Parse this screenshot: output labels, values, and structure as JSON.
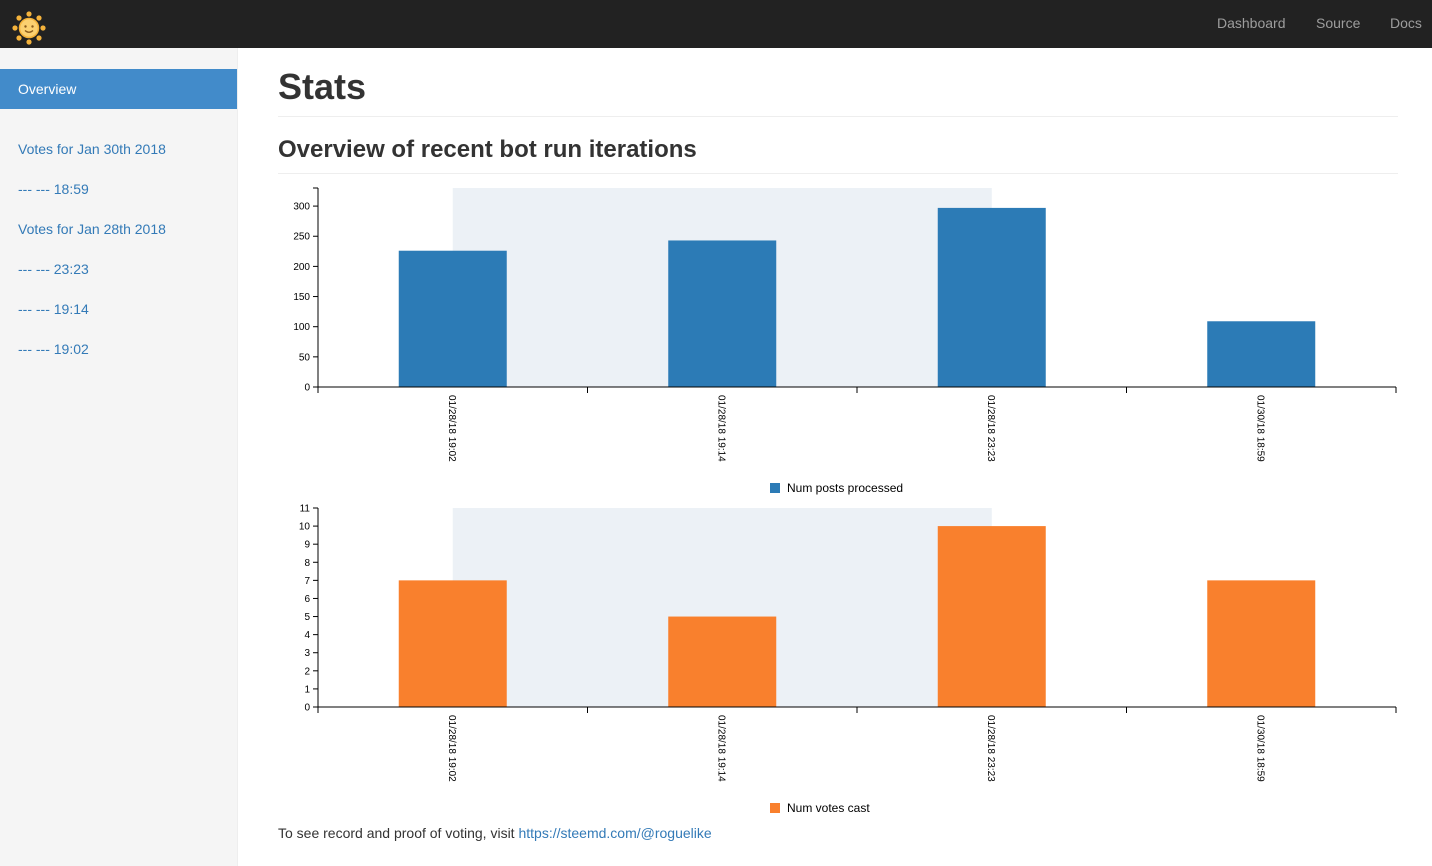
{
  "navbar": {
    "logo_icon": "sun-face-icon",
    "links": [
      "Dashboard",
      "Source",
      "Docs"
    ]
  },
  "sidebar": {
    "active_label": "Overview",
    "items": [
      {
        "label": "Votes for Jan 30th 2018"
      },
      {
        "label": "--- --- 18:59"
      },
      {
        "label": "Votes for Jan 28th 2018"
      },
      {
        "label": "--- --- 23:23"
      },
      {
        "label": "--- --- 19:14"
      },
      {
        "label": "--- --- 19:02"
      }
    ]
  },
  "main": {
    "title": "Stats",
    "subtitle": "Overview of recent bot run iterations",
    "footer_text": "To see record and proof of voting, visit ",
    "footer_link": "https://steemd.com/@roguelike"
  },
  "colors": {
    "posts_bar": "#2c7bb6",
    "votes_bar": "#f9802d",
    "highlight_band": "#ecf1f6",
    "sidebar_active": "#428bca",
    "link": "#337ab7"
  },
  "chart_data": [
    {
      "type": "bar",
      "categories": [
        "01/28/18 19:02",
        "01/28/18 19:14",
        "01/28/18 23:23",
        "01/30/18 18:59"
      ],
      "series": [
        {
          "name": "Num posts processed",
          "values": [
            226,
            243,
            297,
            109
          ]
        }
      ],
      "ylim": [
        0,
        330
      ],
      "yticks": [
        0,
        50,
        100,
        150,
        200,
        250,
        300
      ],
      "legend": "bottom-center",
      "grid": false,
      "highlight_range": [
        0,
        2
      ]
    },
    {
      "type": "bar",
      "categories": [
        "01/28/18 19:02",
        "01/28/18 19:14",
        "01/28/18 23:23",
        "01/30/18 18:59"
      ],
      "series": [
        {
          "name": "Num votes cast",
          "values": [
            7,
            5,
            10,
            7
          ]
        }
      ],
      "ylim": [
        0,
        11
      ],
      "yticks": [
        0,
        1,
        2,
        3,
        4,
        5,
        6,
        7,
        8,
        9,
        10,
        11
      ],
      "legend": "bottom-center",
      "grid": false,
      "highlight_range": [
        0,
        2
      ]
    }
  ]
}
